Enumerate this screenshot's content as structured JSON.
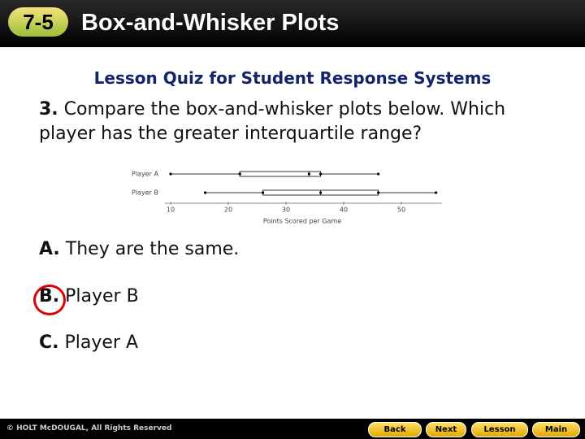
{
  "header": {
    "lesson": "7-5",
    "title": "Box-and-Whisker Plots"
  },
  "subtitle": "Lesson Quiz for Student Response Systems",
  "question": {
    "number": "3.",
    "text": "Compare the box-and-whisker plots below. Which player has the greater interquartile range?"
  },
  "plot": {
    "type": "box",
    "xlabel": "Points Scored per Game",
    "xlim": [
      9,
      57
    ],
    "xticks": [
      10,
      20,
      30,
      40,
      50
    ],
    "series": [
      {
        "name": "Player A",
        "min": 10,
        "q1": 22,
        "median": 34,
        "q3": 36,
        "max": 46
      },
      {
        "name": "Player B",
        "min": 16,
        "q1": 26,
        "median": 36,
        "q3": 46,
        "max": 56
      }
    ]
  },
  "answers": [
    {
      "letter": "A.",
      "text": "They are the same."
    },
    {
      "letter": "B.",
      "text": "Player B"
    },
    {
      "letter": "C.",
      "text": "Player A"
    }
  ],
  "footer": {
    "copyright": "© HOLT McDOUGAL, All Rights Reserved",
    "buttons": [
      "Back",
      "Next",
      "Lesson",
      "Main"
    ]
  }
}
